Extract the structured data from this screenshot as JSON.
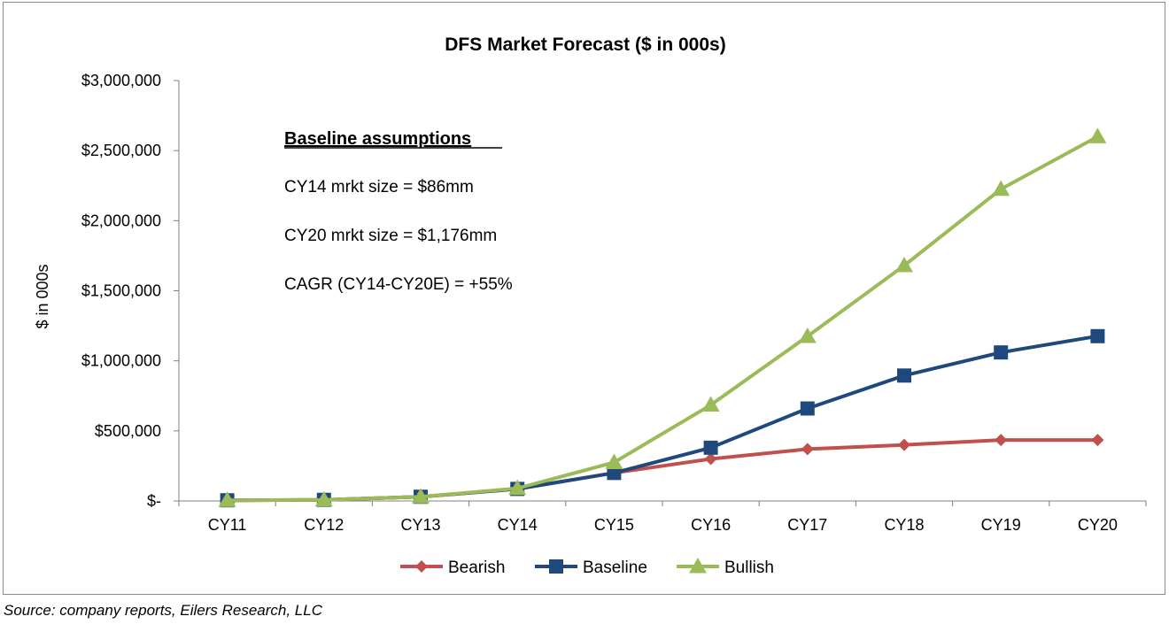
{
  "chart_data": {
    "type": "line",
    "title": "DFS Market Forecast ($ in 000s)",
    "xlabel": "",
    "ylabel": "$ in 000s",
    "categories": [
      "CY11",
      "CY12",
      "CY13",
      "CY14",
      "CY15",
      "CY16",
      "CY17",
      "CY18",
      "CY19",
      "CY20"
    ],
    "ylim": [
      0,
      3000000
    ],
    "y_ticks": [
      0,
      500000,
      1000000,
      1500000,
      2000000,
      2500000,
      3000000
    ],
    "y_tick_labels": [
      "$-",
      "$500,000",
      "$1,000,000",
      "$1,500,000",
      "$2,000,000",
      "$2,500,000",
      "$3,000,000"
    ],
    "grid": false,
    "legend_position": "bottom",
    "series": [
      {
        "name": "Bearish",
        "color": "#c0504d",
        "marker": "diamond",
        "values": [
          5000,
          8000,
          30000,
          86000,
          200000,
          300000,
          370000,
          400000,
          435000,
          435000
        ]
      },
      {
        "name": "Baseline",
        "color": "#1f497d",
        "marker": "square",
        "values": [
          5000,
          8000,
          30000,
          86000,
          200000,
          380000,
          660000,
          895000,
          1060000,
          1176000
        ]
      },
      {
        "name": "Bullish",
        "color": "#9bbb59",
        "marker": "triangle",
        "values": [
          5000,
          8000,
          30000,
          90000,
          275000,
          685000,
          1175000,
          1680000,
          2225000,
          2600000
        ]
      }
    ],
    "annotations": {
      "heading": "Baseline assumptions",
      "lines": [
        "CY14 mrkt size = $86mm",
        "CY20 mrkt size = $1,176mm",
        "CAGR (CY14-CY20E)  = +55%"
      ]
    }
  },
  "source_note": "Source: company reports, Eilers Research, LLC"
}
